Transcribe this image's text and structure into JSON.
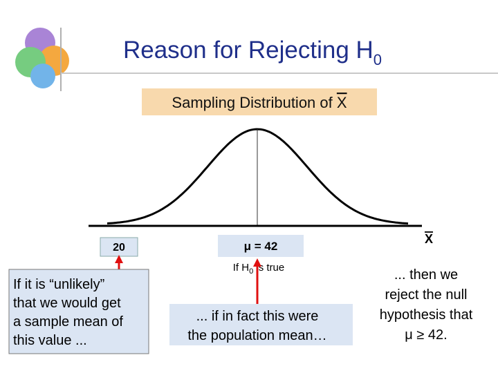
{
  "header": {
    "title": "Reason for Rejecting H",
    "title_sub": "0"
  },
  "distribution": {
    "label": "Sampling Distribution of ",
    "label_var": "X",
    "axis_label": "X"
  },
  "labels": {
    "sample_mean": "20",
    "mu": "μ = 42",
    "hypothesis_prefix": "If H",
    "hypothesis_sub": "0",
    "hypothesis_suffix": " is true"
  },
  "notes": {
    "left": [
      "If it is “unlikely”",
      "that we would get",
      "a sample mean of",
      "this value ..."
    ],
    "middle": [
      "... if in fact this were",
      "the population mean…"
    ],
    "right": [
      "... then we",
      "reject the null",
      "hypothesis that",
      "μ ≥ 42."
    ]
  }
}
